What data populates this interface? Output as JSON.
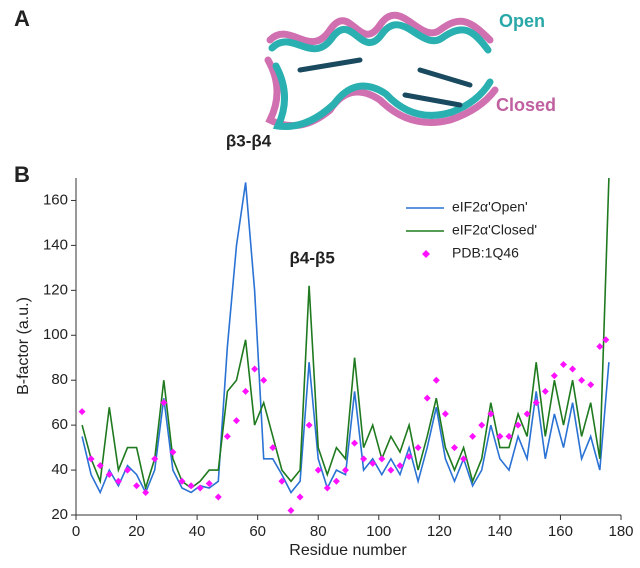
{
  "figure": {
    "panels": [
      "A",
      "B"
    ],
    "structure_labels": [
      "Open",
      "Closed"
    ]
  },
  "chart_data": {
    "type": "line",
    "xlabel": "Residue number",
    "ylabel": "B-factor (a.u.)",
    "xlim": [
      0,
      180
    ],
    "xticks": [
      0,
      20,
      40,
      60,
      80,
      100,
      120,
      140,
      160,
      180
    ],
    "ylim": [
      20,
      170
    ],
    "yticks": [
      20,
      40,
      60,
      80,
      100,
      120,
      140,
      160
    ],
    "grid": false,
    "legend": "upper right",
    "annotations": [
      {
        "text": "β3-β4",
        "x": 57,
        "y": 178
      },
      {
        "text": "β4-β5",
        "x": 78,
        "y": 126
      }
    ],
    "series": [
      {
        "name": "eIF2α'Open'",
        "type": "line",
        "color": "#2a72d4",
        "x": [
          2,
          5,
          8,
          11,
          14,
          17,
          20,
          23,
          26,
          29,
          32,
          35,
          38,
          41,
          44,
          47,
          50,
          53,
          56,
          59,
          62,
          65,
          68,
          71,
          74,
          77,
          80,
          83,
          86,
          89,
          92,
          95,
          98,
          101,
          104,
          107,
          110,
          113,
          116,
          119,
          122,
          125,
          128,
          131,
          134,
          137,
          140,
          143,
          146,
          149,
          152,
          155,
          158,
          161,
          164,
          167,
          170,
          173,
          176
        ],
        "values": [
          55,
          38,
          30,
          40,
          33,
          42,
          38,
          30,
          40,
          72,
          40,
          32,
          30,
          33,
          32,
          35,
          95,
          140,
          168,
          120,
          45,
          45,
          38,
          30,
          35,
          88,
          45,
          32,
          40,
          38,
          75,
          40,
          45,
          38,
          45,
          38,
          50,
          35,
          50,
          68,
          45,
          35,
          45,
          33,
          40,
          60,
          45,
          40,
          55,
          45,
          75,
          45,
          65,
          50,
          70,
          45,
          55,
          40,
          88
        ]
      },
      {
        "name": "eIF2α'Closed'",
        "type": "line",
        "color": "#1f7a1f",
        "x": [
          2,
          5,
          8,
          11,
          14,
          17,
          20,
          23,
          26,
          29,
          32,
          35,
          38,
          41,
          44,
          47,
          50,
          53,
          56,
          59,
          62,
          65,
          68,
          71,
          74,
          77,
          80,
          83,
          86,
          89,
          92,
          95,
          98,
          101,
          104,
          107,
          110,
          113,
          116,
          119,
          122,
          125,
          128,
          131,
          134,
          137,
          140,
          143,
          146,
          149,
          152,
          155,
          158,
          161,
          164,
          167,
          170,
          173,
          176
        ],
        "values": [
          60,
          45,
          35,
          68,
          40,
          50,
          50,
          32,
          45,
          80,
          45,
          35,
          32,
          35,
          40,
          40,
          75,
          80,
          98,
          60,
          70,
          55,
          40,
          35,
          40,
          122,
          50,
          38,
          50,
          45,
          90,
          50,
          60,
          45,
          55,
          48,
          60,
          40,
          55,
          72,
          50,
          40,
          50,
          35,
          45,
          70,
          50,
          50,
          65,
          55,
          88,
          55,
          80,
          60,
          80,
          55,
          70,
          45,
          170
        ]
      },
      {
        "name": "PDB:1Q46",
        "type": "scatter",
        "color": "#ff10ff",
        "x": [
          2,
          5,
          8,
          11,
          14,
          17,
          20,
          23,
          26,
          29,
          32,
          35,
          38,
          41,
          44,
          47,
          50,
          53,
          56,
          59,
          62,
          65,
          68,
          71,
          74,
          77,
          80,
          83,
          86,
          89,
          92,
          95,
          98,
          101,
          104,
          107,
          110,
          113,
          116,
          119,
          122,
          125,
          128,
          131,
          134,
          137,
          140,
          143,
          146,
          149,
          152,
          155,
          158,
          161,
          164,
          167,
          170,
          173,
          175
        ],
        "values": [
          66,
          45,
          42,
          38,
          35,
          40,
          33,
          30,
          45,
          70,
          48,
          35,
          33,
          32,
          34,
          28,
          55,
          62,
          75,
          85,
          80,
          50,
          35,
          22,
          28,
          60,
          40,
          32,
          35,
          40,
          52,
          45,
          43,
          45,
          40,
          42,
          46,
          50,
          72,
          80,
          65,
          50,
          45,
          55,
          60,
          65,
          55,
          55,
          60,
          65,
          70,
          75,
          82,
          87,
          85,
          80,
          78,
          95,
          98
        ]
      }
    ]
  }
}
